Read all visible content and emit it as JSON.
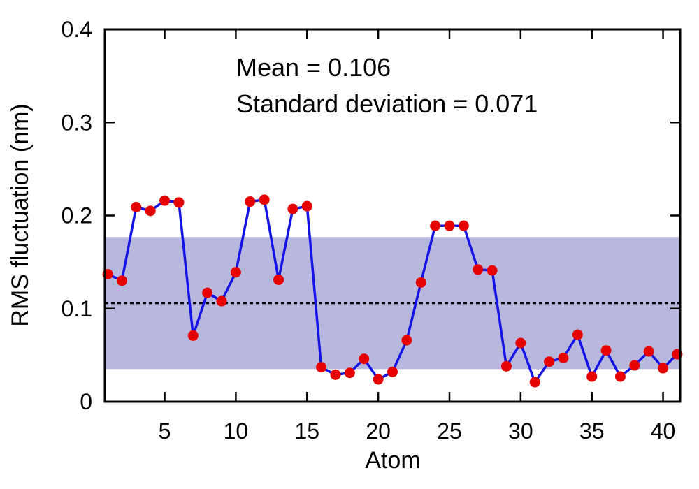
{
  "chart_data": {
    "type": "line",
    "xlabel": "Atom",
    "ylabel": "RMS fluctuation (nm)",
    "xlim": [
      0.8,
      41.2
    ],
    "ylim": [
      0,
      0.4
    ],
    "xticks": [
      5,
      10,
      15,
      20,
      25,
      30,
      35,
      40
    ],
    "yticks": [
      0,
      0.1,
      0.2,
      0.3,
      0.4
    ],
    "ytick_labels": [
      "0",
      "0.1",
      "0.2",
      "0.3",
      "0.4"
    ],
    "grid": false,
    "series": [
      {
        "x": [
          1,
          2,
          3,
          4,
          5,
          6,
          7,
          8,
          9,
          10,
          11,
          12,
          13,
          14,
          15,
          16,
          17,
          18,
          19,
          20,
          21,
          22,
          23,
          24,
          25,
          26,
          27,
          28,
          29,
          30,
          31,
          32,
          33,
          34,
          35,
          36,
          37,
          38,
          39,
          40,
          41
        ],
        "values": [
          0.137,
          0.13,
          0.209,
          0.205,
          0.216,
          0.214,
          0.071,
          0.117,
          0.108,
          0.139,
          0.215,
          0.217,
          0.131,
          0.207,
          0.21,
          0.037,
          0.029,
          0.031,
          0.046,
          0.024,
          0.032,
          0.066,
          0.128,
          0.189,
          0.189,
          0.189,
          0.142,
          0.141,
          0.038,
          0.063,
          0.021,
          0.043,
          0.047,
          0.072,
          0.027,
          0.055,
          0.027,
          0.039,
          0.054,
          0.036,
          0.051
        ],
        "line_color": "#1414e6",
        "marker_color": "#e60000"
      }
    ],
    "mean": 0.106,
    "std": 0.071,
    "mean_line_color": "#000000",
    "band_color": "#b8b8de",
    "annotations": [
      "Mean = 0.106",
      "Standard deviation = 0.071"
    ]
  }
}
